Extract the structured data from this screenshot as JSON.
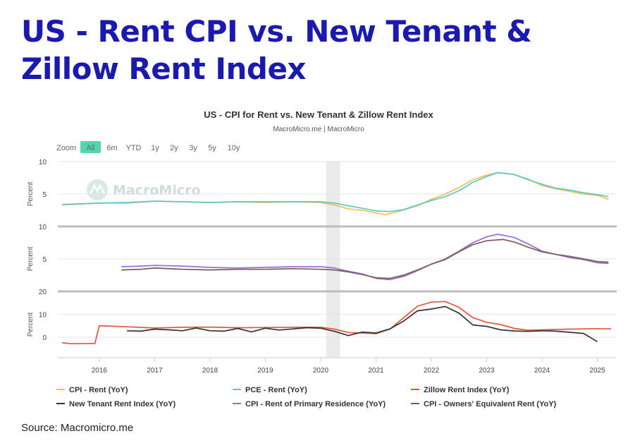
{
  "title": "US - Rent CPI vs. New Tenant & Zillow Rent Index",
  "source": "Source: Macromicro.me",
  "chart_data": {
    "type": "line",
    "title": "US - CPI for Rent vs. New Tenant & Zillow Rent Index",
    "subtitle": "MacroMicro.me | MacroMicro",
    "watermark": "MacroMicro",
    "zoom": {
      "label": "Zoom",
      "options": [
        "All",
        "6m",
        "YTD",
        "1y",
        "2y",
        "3y",
        "5y",
        "10y"
      ],
      "selected": "All"
    },
    "x_ticks": [
      2016,
      2017,
      2018,
      2019,
      2020,
      2021,
      2022,
      2023,
      2024,
      2025
    ],
    "xlim": [
      2015.25,
      2025.35
    ],
    "shaded_region": [
      2020.1,
      2020.35
    ],
    "legend_position": "bottom",
    "panels": [
      {
        "ylabel": "Percent",
        "yticks": [
          5,
          10
        ],
        "ylim": [
          0,
          10
        ],
        "series": [
          {
            "name": "CPI - Rent (YoY)",
            "color": "#f2c14e",
            "points": [
              [
                2015.33,
                3.3
              ],
              [
                2016,
                3.6
              ],
              [
                2016.5,
                3.6
              ],
              [
                2017,
                3.9
              ],
              [
                2017.5,
                3.8
              ],
              [
                2018,
                3.7
              ],
              [
                2018.5,
                3.8
              ],
              [
                2019,
                3.7
              ],
              [
                2019.5,
                3.8
              ],
              [
                2020,
                3.7
              ],
              [
                2020.25,
                3.3
              ],
              [
                2020.5,
                2.7
              ],
              [
                2020.75,
                2.5
              ],
              [
                2021,
                2.1
              ],
              [
                2021.17,
                1.8
              ],
              [
                2021.4,
                2.3
              ],
              [
                2021.75,
                3.2
              ],
              [
                2022,
                4.2
              ],
              [
                2022.25,
                5.0
              ],
              [
                2022.5,
                6.0
              ],
              [
                2022.75,
                7.2
              ],
              [
                2023,
                7.9
              ],
              [
                2023.2,
                8.3
              ],
              [
                2023.5,
                8.0
              ],
              [
                2023.75,
                7.3
              ],
              [
                2024,
                6.3
              ],
              [
                2024.25,
                5.8
              ],
              [
                2024.5,
                5.4
              ],
              [
                2024.75,
                5.0
              ],
              [
                2025,
                4.8
              ],
              [
                2025.2,
                4.2
              ]
            ]
          },
          {
            "name": "PCE - Rent (YoY)",
            "color": "#5bc8c8",
            "points": [
              [
                2015.33,
                3.4
              ],
              [
                2016,
                3.6
              ],
              [
                2016.5,
                3.7
              ],
              [
                2017,
                3.9
              ],
              [
                2017.5,
                3.8
              ],
              [
                2018,
                3.7
              ],
              [
                2018.5,
                3.8
              ],
              [
                2019,
                3.8
              ],
              [
                2019.5,
                3.8
              ],
              [
                2020,
                3.8
              ],
              [
                2020.25,
                3.6
              ],
              [
                2020.5,
                3.2
              ],
              [
                2020.75,
                2.8
              ],
              [
                2021,
                2.4
              ],
              [
                2021.25,
                2.3
              ],
              [
                2021.5,
                2.6
              ],
              [
                2021.75,
                3.3
              ],
              [
                2022,
                4.0
              ],
              [
                2022.25,
                4.6
              ],
              [
                2022.5,
                5.5
              ],
              [
                2022.75,
                6.8
              ],
              [
                2023,
                7.7
              ],
              [
                2023.2,
                8.3
              ],
              [
                2023.5,
                8.0
              ],
              [
                2023.75,
                7.2
              ],
              [
                2024,
                6.5
              ],
              [
                2024.25,
                5.9
              ],
              [
                2024.5,
                5.6
              ],
              [
                2024.75,
                5.2
              ],
              [
                2025,
                4.9
              ],
              [
                2025.2,
                4.6
              ]
            ]
          }
        ]
      },
      {
        "ylabel": "Percent",
        "yticks": [
          5,
          10
        ],
        "ylim": [
          0,
          10
        ],
        "series": [
          {
            "name": "CPI - Rent of Primary Residence (YoY)",
            "color": "#9b6bd6",
            "points": [
              [
                2016.4,
                3.8
              ],
              [
                2016.75,
                3.9
              ],
              [
                2017,
                4.0
              ],
              [
                2017.5,
                3.9
              ],
              [
                2018,
                3.7
              ],
              [
                2018.5,
                3.6
              ],
              [
                2019,
                3.7
              ],
              [
                2019.5,
                3.8
              ],
              [
                2020,
                3.8
              ],
              [
                2020.25,
                3.6
              ],
              [
                2020.5,
                3.1
              ],
              [
                2020.75,
                2.7
              ],
              [
                2021,
                2.0
              ],
              [
                2021.25,
                1.8
              ],
              [
                2021.5,
                2.3
              ],
              [
                2021.75,
                3.2
              ],
              [
                2022,
                4.2
              ],
              [
                2022.25,
                5.0
              ],
              [
                2022.5,
                6.2
              ],
              [
                2022.75,
                7.5
              ],
              [
                2023,
                8.4
              ],
              [
                2023.2,
                8.8
              ],
              [
                2023.5,
                8.3
              ],
              [
                2023.75,
                7.3
              ],
              [
                2024,
                6.2
              ],
              [
                2024.25,
                5.7
              ],
              [
                2024.5,
                5.2
              ],
              [
                2024.75,
                4.9
              ],
              [
                2025,
                4.4
              ],
              [
                2025.2,
                4.3
              ]
            ]
          },
          {
            "name": "CPI - Owners' Equivalent Rent (YoY)",
            "color": "#7a5c52",
            "points": [
              [
                2016.4,
                3.3
              ],
              [
                2016.75,
                3.4
              ],
              [
                2017,
                3.6
              ],
              [
                2017.5,
                3.4
              ],
              [
                2018,
                3.3
              ],
              [
                2018.5,
                3.4
              ],
              [
                2019,
                3.4
              ],
              [
                2019.5,
                3.5
              ],
              [
                2020,
                3.4
              ],
              [
                2020.25,
                3.3
              ],
              [
                2020.5,
                3.0
              ],
              [
                2020.75,
                2.6
              ],
              [
                2021,
                2.1
              ],
              [
                2021.25,
                2.0
              ],
              [
                2021.5,
                2.5
              ],
              [
                2021.75,
                3.3
              ],
              [
                2022,
                4.2
              ],
              [
                2022.25,
                4.9
              ],
              [
                2022.5,
                6.1
              ],
              [
                2022.75,
                7.2
              ],
              [
                2023,
                7.8
              ],
              [
                2023.3,
                8.0
              ],
              [
                2023.5,
                7.6
              ],
              [
                2023.75,
                6.8
              ],
              [
                2024,
                6.1
              ],
              [
                2024.25,
                5.7
              ],
              [
                2024.5,
                5.4
              ],
              [
                2024.75,
                5.0
              ],
              [
                2025,
                4.6
              ],
              [
                2025.2,
                4.5
              ]
            ]
          }
        ]
      },
      {
        "ylabel": "Percent",
        "yticks": [
          0,
          10,
          20
        ],
        "ylim": [
          -9,
          20
        ],
        "series": [
          {
            "name": "Zillow Rent Index (YoY)",
            "color": "#e8553d",
            "points": [
              [
                2015.33,
                -2.5
              ],
              [
                2015.5,
                -2.9
              ],
              [
                2015.92,
                -2.8
              ],
              [
                2016,
                5.0
              ],
              [
                2016.5,
                4.5
              ],
              [
                2017,
                4.0
              ],
              [
                2017.5,
                4.3
              ],
              [
                2018,
                4.4
              ],
              [
                2018.5,
                4.1
              ],
              [
                2019,
                4.2
              ],
              [
                2019.5,
                4.3
              ],
              [
                2020,
                4.3
              ],
              [
                2020.25,
                3.5
              ],
              [
                2020.5,
                2.0
              ],
              [
                2020.75,
                1.8
              ],
              [
                2021,
                1.5
              ],
              [
                2021.25,
                3.5
              ],
              [
                2021.5,
                8.5
              ],
              [
                2021.75,
                13.5
              ],
              [
                2022,
                15.3
              ],
              [
                2022.25,
                15.6
              ],
              [
                2022.5,
                13.0
              ],
              [
                2022.75,
                8.5
              ],
              [
                2023,
                6.5
              ],
              [
                2023.25,
                5.5
              ],
              [
                2023.5,
                3.8
              ],
              [
                2023.75,
                3.0
              ],
              [
                2024,
                3.2
              ],
              [
                2024.5,
                3.5
              ],
              [
                2025,
                3.7
              ],
              [
                2025.25,
                3.6
              ]
            ]
          },
          {
            "name": "New Tenant Rent Index (YoY)",
            "color": "#333333",
            "points": [
              [
                2016.5,
                2.8
              ],
              [
                2016.75,
                2.6
              ],
              [
                2017,
                3.5
              ],
              [
                2017.25,
                3.2
              ],
              [
                2017.5,
                2.8
              ],
              [
                2017.75,
                4.0
              ],
              [
                2018,
                2.8
              ],
              [
                2018.25,
                2.6
              ],
              [
                2018.5,
                3.8
              ],
              [
                2018.75,
                2.3
              ],
              [
                2019,
                3.9
              ],
              [
                2019.25,
                3.1
              ],
              [
                2019.5,
                3.6
              ],
              [
                2019.75,
                4.1
              ],
              [
                2020,
                3.9
              ],
              [
                2020.25,
                2.5
              ],
              [
                2020.5,
                0.7
              ],
              [
                2020.75,
                2.2
              ],
              [
                2021,
                1.8
              ],
              [
                2021.25,
                3.6
              ],
              [
                2021.5,
                7.0
              ],
              [
                2021.75,
                11.5
              ],
              [
                2022,
                12.3
              ],
              [
                2022.25,
                13.4
              ],
              [
                2022.5,
                10.5
              ],
              [
                2022.75,
                5.3
              ],
              [
                2023,
                4.7
              ],
              [
                2023.25,
                3.2
              ],
              [
                2023.5,
                2.7
              ],
              [
                2023.75,
                2.5
              ],
              [
                2024,
                2.8
              ],
              [
                2024.25,
                2.6
              ],
              [
                2024.5,
                2.1
              ],
              [
                2024.75,
                1.6
              ],
              [
                2025,
                -2.0
              ]
            ]
          }
        ]
      }
    ],
    "legend": [
      {
        "name": "CPI - Rent (YoY)",
        "color": "#f2c14e"
      },
      {
        "name": "PCE - Rent (YoY)",
        "color": "#5bc8c8"
      },
      {
        "name": "Zillow Rent Index (YoY)",
        "color": "#e8553d"
      },
      {
        "name": "New Tenant Rent Index (YoY)",
        "color": "#333333"
      },
      {
        "name": "CPI - Rent of Primary Residence (YoY)",
        "color": "#9b6bd6"
      },
      {
        "name": "CPI - Owners' Equivalent Rent (YoY)",
        "color": "#7a5c52"
      }
    ]
  }
}
